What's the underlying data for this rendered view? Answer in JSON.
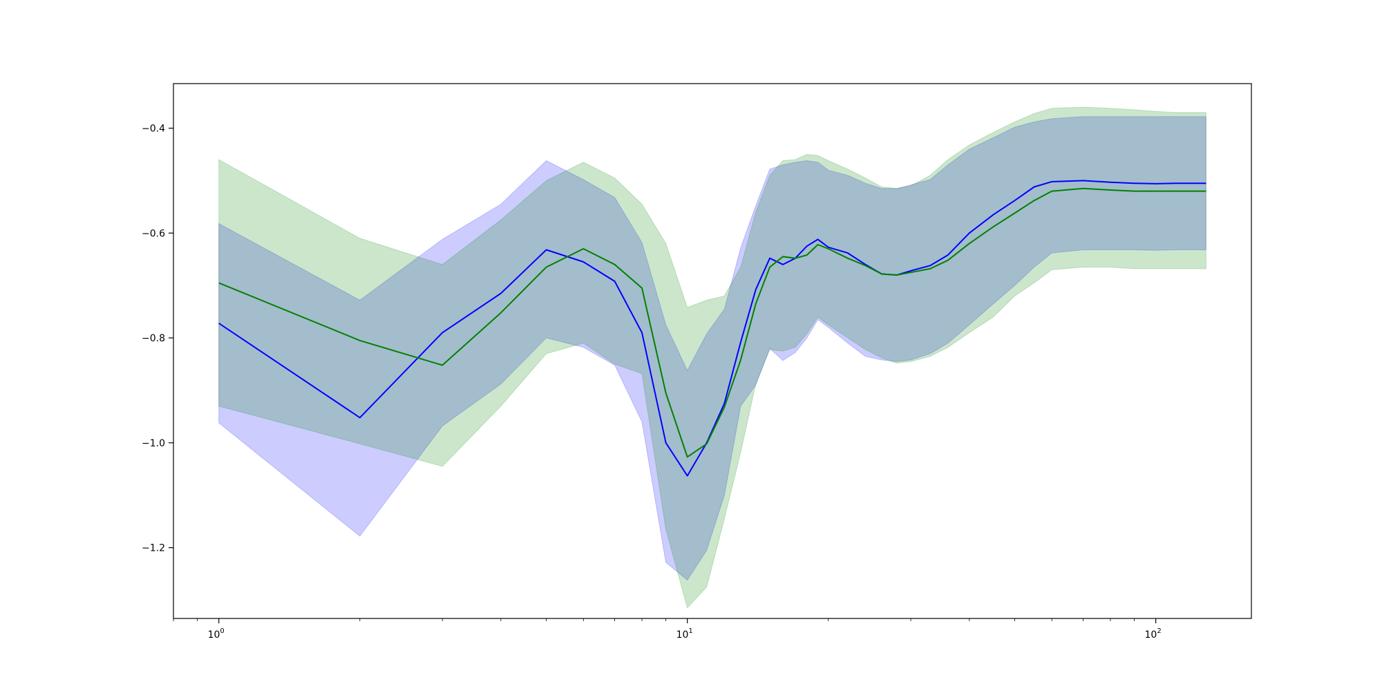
{
  "chart_data": {
    "type": "line",
    "title": "",
    "xlabel": "",
    "ylabel": "",
    "xscale": "log",
    "xlim": [
      0.8,
      160
    ],
    "ylim": [
      -1.335,
      -0.315
    ],
    "grid": false,
    "legend": "none",
    "x_ticks": [
      {
        "value": 1,
        "base": "10",
        "exp": "0"
      },
      {
        "value": 10,
        "base": "10",
        "exp": "1"
      },
      {
        "value": 100,
        "base": "10",
        "exp": "2"
      }
    ],
    "y_ticks": [
      {
        "value": -1.2,
        "label": "−1.2"
      },
      {
        "value": -1.0,
        "label": "−1.0"
      },
      {
        "value": -0.8,
        "label": "−0.8"
      },
      {
        "value": -0.6,
        "label": "−0.6"
      },
      {
        "value": -0.4,
        "label": "−0.4"
      }
    ],
    "x": [
      1,
      2,
      3,
      4,
      5,
      6,
      7,
      8,
      9,
      10,
      11,
      12,
      13,
      14,
      15,
      16,
      17,
      18,
      19,
      20,
      22,
      24,
      26,
      28,
      30,
      33,
      36,
      40,
      45,
      50,
      55,
      60,
      70,
      80,
      90,
      100,
      110,
      128
    ],
    "series": [
      {
        "color": "#0000ff",
        "band_color": "#0000ff",
        "band_opacity": 0.2,
        "values": [
          -0.772,
          -0.952,
          -0.79,
          -0.715,
          -0.632,
          -0.655,
          -0.692,
          -0.79,
          -1.0,
          -1.063,
          -1.0,
          -0.925,
          -0.808,
          -0.708,
          -0.648,
          -0.66,
          -0.648,
          -0.625,
          -0.612,
          -0.627,
          -0.638,
          -0.66,
          -0.678,
          -0.68,
          -0.672,
          -0.662,
          -0.642,
          -0.6,
          -0.565,
          -0.538,
          -0.512,
          -0.502,
          -0.5,
          -0.503,
          -0.505,
          -0.506,
          -0.505,
          -0.505
        ],
        "lower": [
          -0.962,
          -1.178,
          -0.968,
          -0.888,
          -0.8,
          -0.818,
          -0.852,
          -0.96,
          -1.228,
          -1.262,
          -1.205,
          -1.1,
          -0.93,
          -0.89,
          -0.82,
          -0.843,
          -0.828,
          -0.8,
          -0.765,
          -0.78,
          -0.81,
          -0.835,
          -0.842,
          -0.845,
          -0.842,
          -0.83,
          -0.81,
          -0.775,
          -0.735,
          -0.7,
          -0.665,
          -0.638,
          -0.632,
          -0.632,
          -0.632,
          -0.633,
          -0.632,
          -0.632
        ],
        "upper": [
          -0.582,
          -0.728,
          -0.612,
          -0.545,
          -0.462,
          -0.498,
          -0.532,
          -0.618,
          -0.775,
          -0.862,
          -0.792,
          -0.745,
          -0.628,
          -0.548,
          -0.478,
          -0.47,
          -0.465,
          -0.462,
          -0.465,
          -0.48,
          -0.49,
          -0.505,
          -0.515,
          -0.515,
          -0.508,
          -0.498,
          -0.47,
          -0.44,
          -0.418,
          -0.398,
          -0.388,
          -0.382,
          -0.378,
          -0.378,
          -0.378,
          -0.378,
          -0.378,
          -0.378
        ]
      },
      {
        "color": "#008000",
        "band_color": "#008000",
        "band_opacity": 0.2,
        "values": [
          -0.695,
          -0.805,
          -0.852,
          -0.752,
          -0.665,
          -0.63,
          -0.66,
          -0.705,
          -0.905,
          -1.027,
          -1.002,
          -0.932,
          -0.842,
          -0.735,
          -0.665,
          -0.645,
          -0.648,
          -0.642,
          -0.622,
          -0.63,
          -0.648,
          -0.662,
          -0.678,
          -0.68,
          -0.675,
          -0.668,
          -0.652,
          -0.62,
          -0.588,
          -0.562,
          -0.538,
          -0.52,
          -0.515,
          -0.518,
          -0.52,
          -0.52,
          -0.52,
          -0.52
        ],
        "lower": [
          -0.93,
          -1.002,
          -1.045,
          -0.93,
          -0.83,
          -0.81,
          -0.85,
          -0.868,
          -1.165,
          -1.315,
          -1.275,
          -1.145,
          -1.018,
          -0.888,
          -0.822,
          -0.825,
          -0.818,
          -0.792,
          -0.76,
          -0.775,
          -0.8,
          -0.822,
          -0.838,
          -0.848,
          -0.845,
          -0.835,
          -0.818,
          -0.79,
          -0.76,
          -0.72,
          -0.695,
          -0.67,
          -0.665,
          -0.665,
          -0.668,
          -0.668,
          -0.668,
          -0.668
        ],
        "upper": [
          -0.46,
          -0.61,
          -0.66,
          -0.575,
          -0.5,
          -0.465,
          -0.495,
          -0.545,
          -0.62,
          -0.742,
          -0.728,
          -0.72,
          -0.665,
          -0.56,
          -0.49,
          -0.462,
          -0.46,
          -0.45,
          -0.452,
          -0.462,
          -0.478,
          -0.495,
          -0.512,
          -0.515,
          -0.51,
          -0.49,
          -0.46,
          -0.432,
          -0.408,
          -0.388,
          -0.372,
          -0.362,
          -0.36,
          -0.362,
          -0.365,
          -0.368,
          -0.37,
          -0.37
        ]
      }
    ]
  }
}
